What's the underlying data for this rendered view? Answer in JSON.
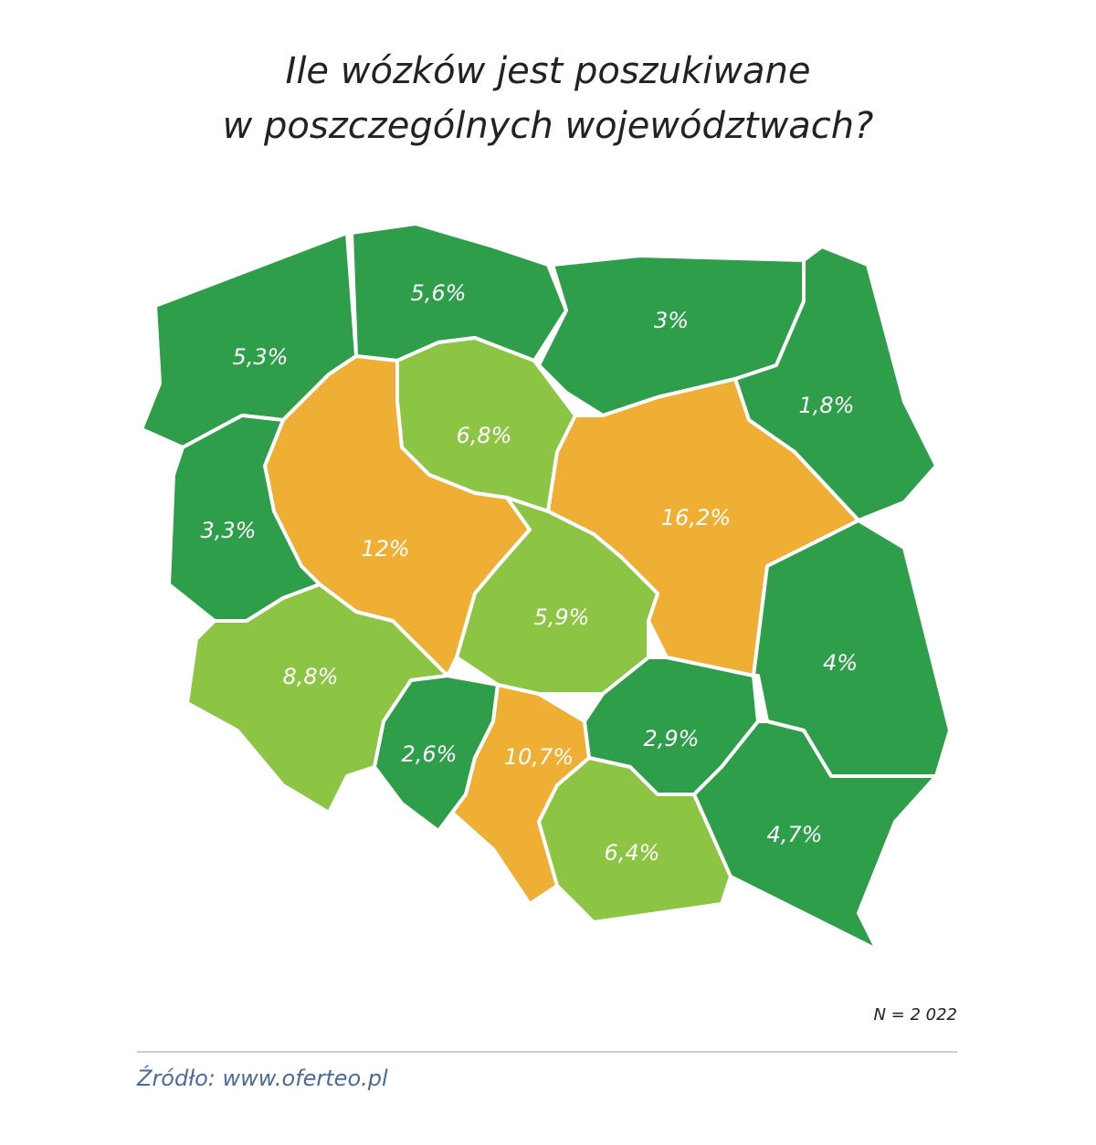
{
  "chart_data": {
    "type": "map",
    "title": [
      "Ile wózków jest poszukiwane",
      "w poszczególnych województwach?"
    ],
    "values": [
      5.3,
      5.6,
      3,
      1.8,
      6.8,
      12,
      16.2,
      3.3,
      5.9,
      4,
      8.8,
      2.6,
      10.7,
      2.9,
      6.4,
      4.7
    ],
    "value_labels": [
      "5,3%",
      "5,6%",
      "3%",
      "1,8%",
      "6,8%",
      "12%",
      "16,2%",
      "3,3%",
      "5,9%",
      "4%",
      "8,8%",
      "2,6%",
      "10,7%",
      "2,9%",
      "6,4%",
      "4,7%"
    ],
    "colors": [
      "#2f9e4b",
      "#2f9e4b",
      "#2f9e4b",
      "#2f9e4b",
      "#8cc443",
      "#eeaf34",
      "#eeaf34",
      "#2f9e4b",
      "#8cc443",
      "#2f9e4b",
      "#8cc443",
      "#2f9e4b",
      "#eeaf34",
      "#2f9e4b",
      "#8cc443",
      "#2f9e4b"
    ],
    "note": "N = 2 022",
    "source": "Źródło:  www.oferteo.pl"
  }
}
